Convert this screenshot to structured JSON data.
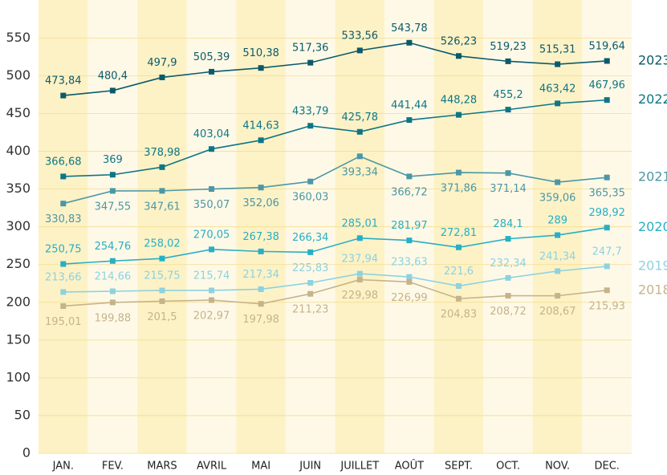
{
  "chart_data": {
    "type": "line",
    "categories": [
      "JAN.",
      "FEV.",
      "MARS",
      "AVRIL",
      "MAI",
      "JUIN",
      "JUILLET",
      "AOÛT",
      "SEPT.",
      "OCT.",
      "NOV.",
      "DEC."
    ],
    "ylim": [
      0,
      560
    ],
    "yticks": [
      0,
      50,
      100,
      150,
      200,
      250,
      300,
      350,
      400,
      450,
      500,
      550
    ],
    "grid": true,
    "series": [
      {
        "name": "2023",
        "color": "#0b5a6b",
        "values": [
          473.84,
          480.4,
          497.9,
          505.39,
          510.38,
          517.36,
          533.56,
          543.78,
          526.23,
          519.23,
          515.31,
          519.64
        ],
        "value_labels": [
          "473,84",
          "480,4",
          "497,9",
          "505,39",
          "510,38",
          "517,36",
          "533,56",
          "543,78",
          "526,23",
          "519,23",
          "515,31",
          "519,64"
        ]
      },
      {
        "name": "2022",
        "color": "#0d7686",
        "values": [
          366.68,
          369,
          378.98,
          403.04,
          414.63,
          433.79,
          425.78,
          441.44,
          448.28,
          455.2,
          463.42,
          467.96
        ],
        "value_labels": [
          "366,68",
          "369",
          "378,98",
          "403,04",
          "414,63",
          "433,79",
          "425,78",
          "441,44",
          "448,28",
          "455,2",
          "463,42",
          "467,96"
        ]
      },
      {
        "name": "2021",
        "color": "#4b97a6",
        "values": [
          330.83,
          347.55,
          347.61,
          350.07,
          352.06,
          360.03,
          393.34,
          366.72,
          371.86,
          371.14,
          359.06,
          365.35
        ],
        "value_labels": [
          "330,83",
          "347,55",
          "347,61",
          "350,07",
          "352,06",
          "360,03",
          "393,34",
          "366,72",
          "371,86",
          "371,14",
          "359,06",
          "365,35"
        ]
      },
      {
        "name": "2020",
        "color": "#27afc5",
        "values": [
          250.75,
          254.76,
          258.02,
          270.05,
          267.38,
          266.34,
          285.01,
          281.97,
          272.81,
          284.1,
          289,
          298.92
        ],
        "value_labels": [
          "250,75",
          "254,76",
          "258,02",
          "270,05",
          "267,38",
          "266,34",
          "285,01",
          "281,97",
          "272,81",
          "284,1",
          "289",
          "298,92"
        ]
      },
      {
        "name": "2019",
        "color": "#8dd2df",
        "values": [
          213.66,
          214.66,
          215.75,
          215.74,
          217.34,
          225.83,
          237.94,
          233.63,
          221.6,
          232.34,
          241.34,
          247.7
        ],
        "value_labels": [
          "213,66",
          "214,66",
          "215,75",
          "215,74",
          "217,34",
          "225,83",
          "237,94",
          "233,63",
          "221,6",
          "232,34",
          "241,34",
          "247,7"
        ]
      },
      {
        "name": "2018",
        "color": "#c5b38b",
        "values": [
          195.01,
          199.88,
          201.5,
          202.97,
          197.98,
          211.23,
          229.98,
          226.99,
          204.83,
          208.72,
          208.67,
          215.93
        ],
        "value_labels": [
          "195,01",
          "199,88",
          "201,5",
          "202,97",
          "197,98",
          "211,23",
          "229,98",
          "226,99",
          "204,83",
          "208,72",
          "208,67",
          "215,93"
        ]
      }
    ]
  }
}
